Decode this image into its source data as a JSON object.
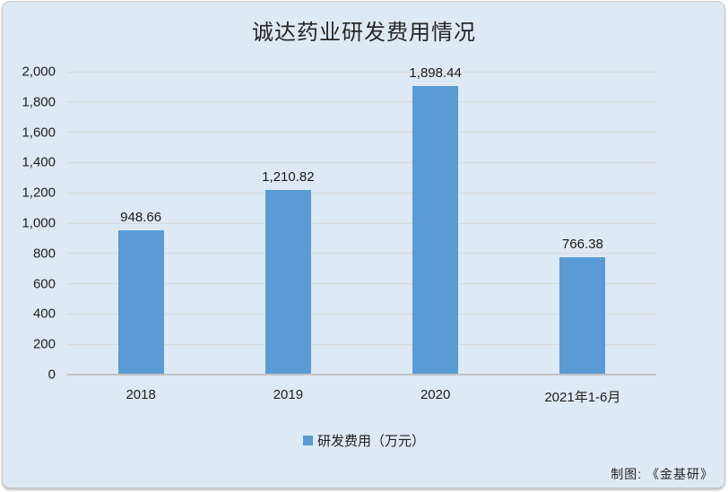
{
  "chart_data": {
    "type": "bar",
    "title": "诚达药业研发费用情况",
    "categories": [
      "2018",
      "2019",
      "2020",
      "2021年1-6月"
    ],
    "values": [
      948.66,
      1210.82,
      1898.44,
      766.38
    ],
    "value_labels": [
      "948.66",
      "1,210.82",
      "1,898.44",
      "766.38"
    ],
    "series_name": "研发费用（万元）",
    "legend": [
      "研发费用（万元）"
    ],
    "legend_position": "bottom",
    "xlabel": "",
    "ylabel": "",
    "ylim": [
      0,
      2000
    ],
    "ytick_step": 200,
    "ytick_labels": [
      "0",
      "200",
      "400",
      "600",
      "800",
      "1,000",
      "1,200",
      "1,400",
      "1,600",
      "1,800",
      "2,000"
    ],
    "grid": true,
    "credit": "制图:  《金基研》",
    "colors": {
      "bar": "#5b9bd5",
      "background": "#dde9f4",
      "gridline": "#d9d9d9",
      "axis_line": "#c3c3c3",
      "text": "#1f1f1f"
    }
  }
}
